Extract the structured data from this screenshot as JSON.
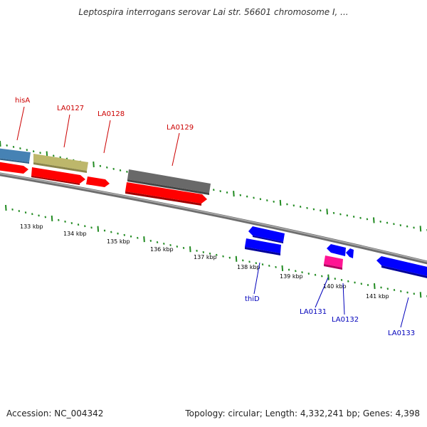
{
  "title": "Leptospira interrogans serovar Lai str. 56601 chromosome I, ...",
  "footer": {
    "accession": "Accession: NC_004342",
    "summary": "Topology: circular; Length: 4,332,241 bp; Genes: 4,398"
  },
  "colors": {
    "backbone": "#808080",
    "tick": "#228B22",
    "top_label": "#cc0000",
    "bottom_label": "#0000bb",
    "scale_label": "#000000"
  },
  "scale_labels": [
    "133 kbp",
    "134 kbp",
    "135 kbp",
    "136 kbp",
    "137 kbp",
    "138 kbp",
    "139 kbp",
    "140 kbp",
    "141 kbp"
  ],
  "features": [
    {
      "id": "hisA-box",
      "color": "#4682B4",
      "strand": "+"
    },
    {
      "id": "LA0127-box",
      "color": "#BDB76B",
      "strand": "+"
    },
    {
      "id": "LA0129-box",
      "color": "#696969",
      "strand": "+"
    },
    {
      "id": "rev-red-1",
      "color": "#ff0000",
      "strand": "+"
    },
    {
      "id": "rev-red-2",
      "color": "#ff0000",
      "strand": "+"
    },
    {
      "id": "rev-red-3",
      "color": "#ff0000",
      "strand": "+"
    },
    {
      "id": "rev-red-4",
      "color": "#ff0000",
      "strand": "+"
    },
    {
      "id": "thiD-a",
      "color": "#0000ff",
      "strand": "-"
    },
    {
      "id": "thiD-b",
      "color": "#0000ff",
      "strand": "-"
    },
    {
      "id": "LA0131-box",
      "color": "#ff1493",
      "strand": "-"
    },
    {
      "id": "LA0132-a",
      "color": "#0000ff",
      "strand": "-"
    },
    {
      "id": "LA0132-b",
      "color": "#0000ff",
      "strand": "-"
    },
    {
      "id": "LA0133-box",
      "color": "#0000ff",
      "strand": "-"
    }
  ],
  "gene_labels_top": [
    "hisA",
    "LA0127",
    "LA0128",
    "LA0129"
  ],
  "gene_labels_bottom": [
    "thiD",
    "LA0131",
    "LA0132",
    "LA0133"
  ]
}
